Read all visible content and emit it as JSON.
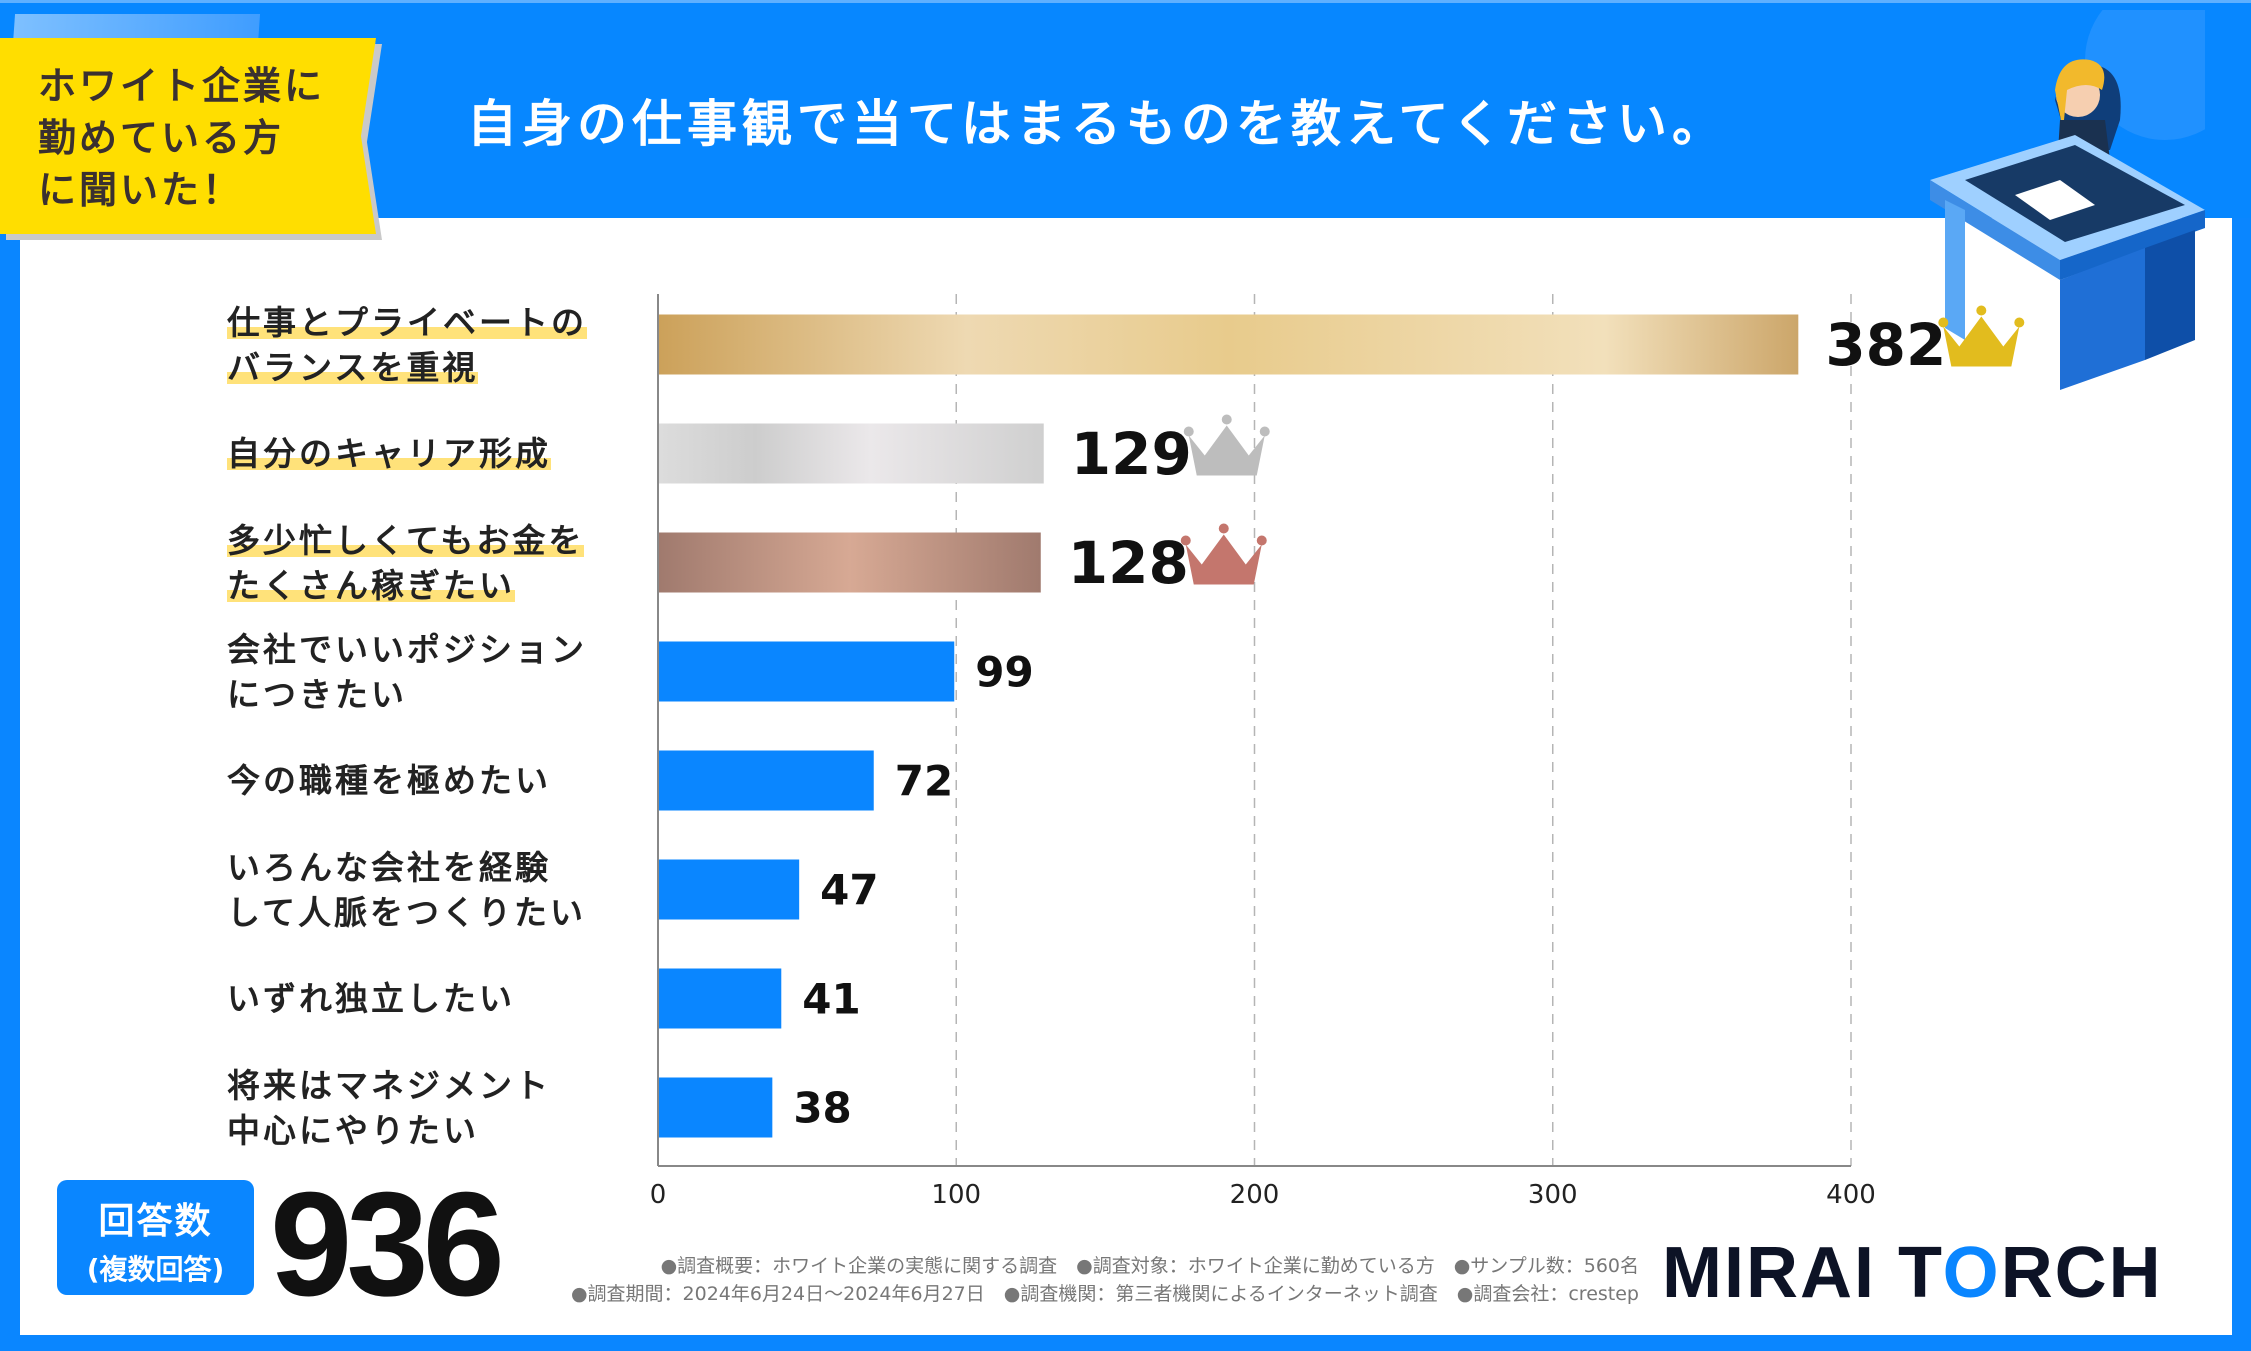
{
  "header": {
    "tag": "ホワイト企業に\n勤めている方\nに聞いた！",
    "title": "自身の仕事観で当てはまるものを教えてください。"
  },
  "chart_data": {
    "type": "bar",
    "orientation": "horizontal",
    "categories": [
      "仕事とプライベートの\nバランスを重視",
      "自分のキャリア形成",
      "多少忙しくてもお金を\nたくさん稼ぎたい",
      "会社でいいポジション\nにつきたい",
      "今の職種を極めたい",
      "いろんな会社を経験\nして人脈をつくりたい",
      "いずれ独立したい",
      "将来はマネジメント\n中心にやりたい"
    ],
    "values": [
      382,
      129,
      128,
      99,
      72,
      47,
      41,
      38
    ],
    "data_labels": [
      "382",
      "129",
      "128",
      "99",
      "72",
      "47",
      "41",
      "38"
    ],
    "xlim": [
      0,
      400
    ],
    "ticks": [
      "0",
      "100",
      "200",
      "300",
      "400"
    ],
    "grid": "vertical dashed",
    "rank_colors": {
      "gold": "#e2bc1e",
      "silver": "#bdbdbd",
      "bronze": "#c4766d"
    },
    "bar_color": "#0a86ff"
  },
  "answers": {
    "label": "回答数",
    "sub": "(複数回答)",
    "count": "936"
  },
  "notes": {
    "line1": "●調査概要：ホワイト企業の実態に関する調査　●調査対象：ホワイト企業に勤めている方　●サンプル数：560名",
    "line2": "●調査期間：2024年6月24日～2024年6月27日　●調査機関：第三者機関によるインターネット調査　●調査会社：crestep"
  },
  "logo": {
    "part1": "MIRAI T",
    "o": "O",
    "part2": "RCH"
  }
}
